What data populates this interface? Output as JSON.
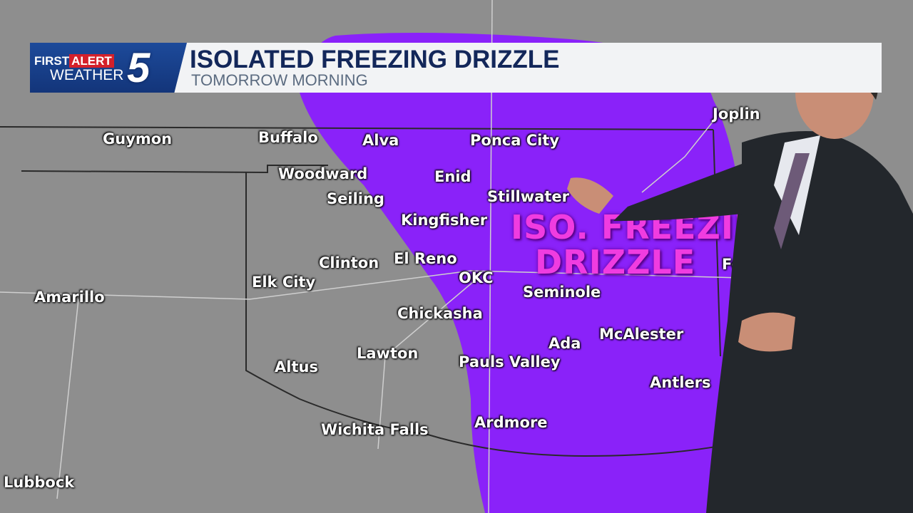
{
  "banner": {
    "logo_first": "FIRST",
    "logo_alert": "ALERT",
    "logo_weather": "WEATHER",
    "logo_channel": "5",
    "title": "ISOLATED FREEZING DRIZZLE",
    "subtitle": "TOMORROW MORNING"
  },
  "map": {
    "overlay_label_line1": "ISO. FREEZING",
    "overlay_label_line2": "DRIZZLE",
    "colors": {
      "drizzle_area": "#8a1cff",
      "land": "#8e8e8e",
      "overlay_text": "#f03ce0"
    },
    "cities": [
      "Guymon",
      "Buffalo",
      "Alva",
      "Ponca City",
      "Joplin",
      "Woodward",
      "Enid",
      "Seiling",
      "Stillwater",
      "Kingfisher",
      "Clinton",
      "El Reno",
      "OKC",
      "Elk City",
      "Amarillo",
      "Seminole",
      "Fo",
      "Chickasha",
      "McAlester",
      "Ada",
      "Lawton",
      "Pauls Valley",
      "Altus",
      "Antlers",
      "Ardmore",
      "Wichita Falls",
      "Lubbock"
    ]
  }
}
